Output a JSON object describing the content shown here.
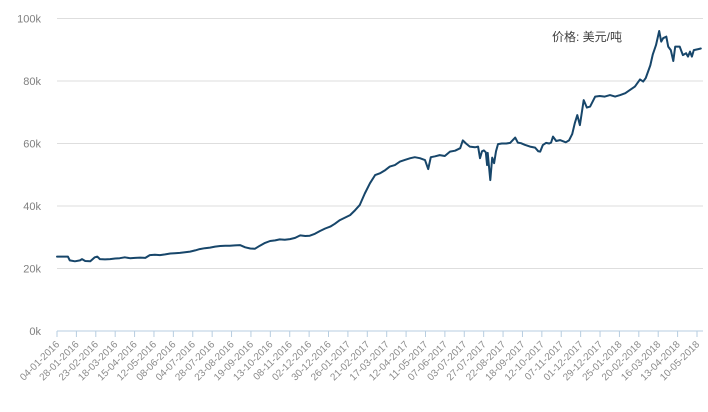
{
  "chart_data": {
    "type": "line",
    "title": "",
    "legend": "价格: 美元/吨",
    "legend_position": "top-right",
    "unit": "USD/ton",
    "line_color": "#17466a",
    "line_width": 2,
    "grid_color": "#dedede",
    "axis_color": "#b7cde0",
    "tick_label_color": "#8c8c8c",
    "y_label_color": "#808080",
    "legend_color": "#404040",
    "background": "#ffffff",
    "grid": "horizontal",
    "ylim": [
      0,
      100000
    ],
    "y_ticks": [
      0,
      20000,
      40000,
      60000,
      80000,
      100000
    ],
    "y_tick_labels": [
      "0k",
      "20k",
      "40k",
      "60k",
      "80k",
      "100k"
    ],
    "x_tick_labels": [
      "04-01-2016",
      "28-01-2016",
      "23-02-2016",
      "18-03-2016",
      "15-04-2016",
      "12-05-2016",
      "08-06-2016",
      "04-07-2016",
      "28-07-2016",
      "23-08-2016",
      "19-09-2016",
      "13-10-2016",
      "08-11-2016",
      "02-12-2016",
      "30-12-2016",
      "26-01-2017",
      "21-02-2017",
      "17-03-2017",
      "12-04-2017",
      "11-05-2017",
      "07-06-2017",
      "03-07-2017",
      "27-07-2017",
      "22-08-2017",
      "18-09-2017",
      "12-10-2017",
      "07-11-2017",
      "01-12-2017",
      "29-12-2017",
      "25-01-2018",
      "20-02-2018",
      "16-03-2018",
      "13-04-2018",
      "10-05-2018"
    ],
    "points": [
      [
        0.0,
        23800
      ],
      [
        0.008,
        23800
      ],
      [
        0.017,
        23800
      ],
      [
        0.02,
        22600
      ],
      [
        0.028,
        22300
      ],
      [
        0.036,
        22600
      ],
      [
        0.039,
        23000
      ],
      [
        0.044,
        22400
      ],
      [
        0.052,
        22300
      ],
      [
        0.059,
        23600
      ],
      [
        0.063,
        23800
      ],
      [
        0.067,
        23000
      ],
      [
        0.075,
        22900
      ],
      [
        0.083,
        23000
      ],
      [
        0.091,
        23200
      ],
      [
        0.098,
        23300
      ],
      [
        0.106,
        23600
      ],
      [
        0.114,
        23300
      ],
      [
        0.122,
        23400
      ],
      [
        0.13,
        23500
      ],
      [
        0.138,
        23400
      ],
      [
        0.145,
        24300
      ],
      [
        0.153,
        24400
      ],
      [
        0.161,
        24300
      ],
      [
        0.169,
        24500
      ],
      [
        0.177,
        24800
      ],
      [
        0.184,
        24900
      ],
      [
        0.192,
        25000
      ],
      [
        0.2,
        25200
      ],
      [
        0.208,
        25400
      ],
      [
        0.216,
        25800
      ],
      [
        0.223,
        26200
      ],
      [
        0.231,
        26500
      ],
      [
        0.239,
        26700
      ],
      [
        0.247,
        27000
      ],
      [
        0.255,
        27200
      ],
      [
        0.263,
        27300
      ],
      [
        0.27,
        27300
      ],
      [
        0.278,
        27400
      ],
      [
        0.286,
        27500
      ],
      [
        0.294,
        26800
      ],
      [
        0.302,
        26400
      ],
      [
        0.309,
        26300
      ],
      [
        0.317,
        27300
      ],
      [
        0.325,
        28200
      ],
      [
        0.333,
        28800
      ],
      [
        0.341,
        29000
      ],
      [
        0.348,
        29300
      ],
      [
        0.356,
        29200
      ],
      [
        0.364,
        29400
      ],
      [
        0.372,
        29800
      ],
      [
        0.38,
        30600
      ],
      [
        0.388,
        30400
      ],
      [
        0.395,
        30500
      ],
      [
        0.403,
        31100
      ],
      [
        0.411,
        32000
      ],
      [
        0.419,
        32800
      ],
      [
        0.427,
        33400
      ],
      [
        0.434,
        34300
      ],
      [
        0.442,
        35500
      ],
      [
        0.45,
        36300
      ],
      [
        0.458,
        37100
      ],
      [
        0.466,
        38700
      ],
      [
        0.473,
        40300
      ],
      [
        0.481,
        44000
      ],
      [
        0.489,
        47300
      ],
      [
        0.497,
        49900
      ],
      [
        0.505,
        50500
      ],
      [
        0.513,
        51500
      ],
      [
        0.52,
        52600
      ],
      [
        0.528,
        53100
      ],
      [
        0.536,
        54200
      ],
      [
        0.544,
        54800
      ],
      [
        0.552,
        55300
      ],
      [
        0.559,
        55600
      ],
      [
        0.567,
        55300
      ],
      [
        0.575,
        54700
      ],
      [
        0.58,
        51800
      ],
      [
        0.584,
        55600
      ],
      [
        0.591,
        55900
      ],
      [
        0.598,
        56300
      ],
      [
        0.606,
        56000
      ],
      [
        0.614,
        57400
      ],
      [
        0.622,
        57700
      ],
      [
        0.63,
        58500
      ],
      [
        0.634,
        61000
      ],
      [
        0.639,
        60000
      ],
      [
        0.645,
        59000
      ],
      [
        0.653,
        58800
      ],
      [
        0.658,
        59000
      ],
      [
        0.661,
        55300
      ],
      [
        0.664,
        57500
      ],
      [
        0.667,
        57800
      ],
      [
        0.67,
        57200
      ],
      [
        0.672,
        53100
      ],
      [
        0.673,
        57000
      ],
      [
        0.677,
        48300
      ],
      [
        0.68,
        55500
      ],
      [
        0.683,
        53700
      ],
      [
        0.686,
        57500
      ],
      [
        0.689,
        59800
      ],
      [
        0.695,
        60000
      ],
      [
        0.702,
        60000
      ],
      [
        0.708,
        60200
      ],
      [
        0.716,
        61900
      ],
      [
        0.72,
        60300
      ],
      [
        0.725,
        60100
      ],
      [
        0.731,
        59600
      ],
      [
        0.739,
        59000
      ],
      [
        0.747,
        58700
      ],
      [
        0.752,
        57500
      ],
      [
        0.755,
        57400
      ],
      [
        0.759,
        59500
      ],
      [
        0.764,
        60200
      ],
      [
        0.769,
        60000
      ],
      [
        0.772,
        60300
      ],
      [
        0.775,
        62200
      ],
      [
        0.78,
        60800
      ],
      [
        0.786,
        61100
      ],
      [
        0.791,
        60700
      ],
      [
        0.795,
        60400
      ],
      [
        0.8,
        61000
      ],
      [
        0.805,
        63000
      ],
      [
        0.809,
        66500
      ],
      [
        0.813,
        69100
      ],
      [
        0.817,
        65900
      ],
      [
        0.823,
        73900
      ],
      [
        0.828,
        71500
      ],
      [
        0.833,
        71800
      ],
      [
        0.841,
        75000
      ],
      [
        0.848,
        75200
      ],
      [
        0.856,
        75000
      ],
      [
        0.864,
        75500
      ],
      [
        0.872,
        75000
      ],
      [
        0.88,
        75500
      ],
      [
        0.888,
        76100
      ],
      [
        0.895,
        77100
      ],
      [
        0.903,
        78200
      ],
      [
        0.911,
        80500
      ],
      [
        0.916,
        79800
      ],
      [
        0.92,
        81000
      ],
      [
        0.927,
        85000
      ],
      [
        0.931,
        88500
      ],
      [
        0.936,
        91500
      ],
      [
        0.941,
        96000
      ],
      [
        0.944,
        92600
      ],
      [
        0.947,
        93700
      ],
      [
        0.952,
        94200
      ],
      [
        0.955,
        91000
      ],
      [
        0.959,
        89900
      ],
      [
        0.963,
        86400
      ],
      [
        0.966,
        91000
      ],
      [
        0.973,
        91000
      ],
      [
        0.978,
        88300
      ],
      [
        0.983,
        88900
      ],
      [
        0.986,
        87800
      ],
      [
        0.989,
        89400
      ],
      [
        0.992,
        87800
      ],
      [
        0.995,
        89900
      ],
      [
        1.002,
        90200
      ],
      [
        1.006,
        90400
      ]
    ]
  }
}
